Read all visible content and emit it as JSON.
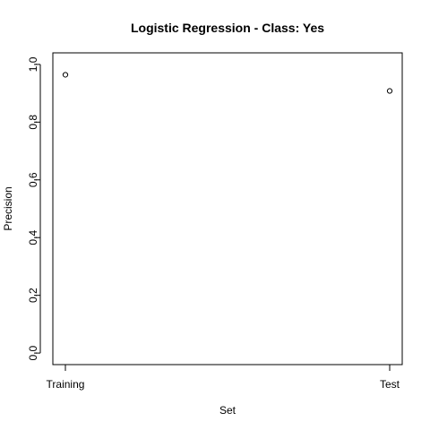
{
  "chart_data": {
    "type": "scatter",
    "title": "Logistic Regression - Class: Yes",
    "xlabel": "Set",
    "ylabel": "Precision",
    "categories": [
      "Training",
      "Test"
    ],
    "values": [
      0.964,
      0.908
    ],
    "ylim": [
      -0.04,
      1.04
    ],
    "yticks": [
      0.0,
      0.2,
      0.4,
      0.6,
      0.8,
      1.0
    ],
    "ytick_labels": [
      "0.0",
      "0.2",
      "0.4",
      "0.6",
      "0.8",
      "1.0"
    ],
    "grid": false,
    "legend": "none",
    "marker": "open-circle",
    "colors": {
      "points": "#000000",
      "axes": "#000000",
      "background": "#ffffff"
    }
  }
}
